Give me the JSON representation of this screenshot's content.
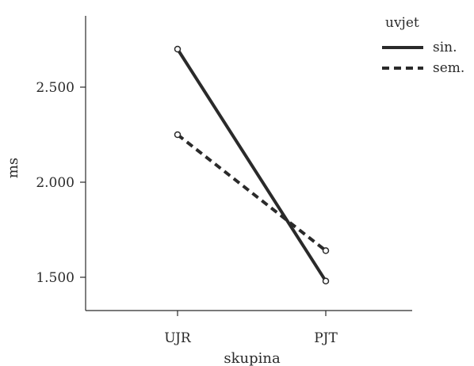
{
  "chart_data": {
    "type": "line",
    "categories": [
      "UJR",
      "PJT"
    ],
    "series": [
      {
        "name": "sin.",
        "values": [
          2700,
          1480
        ],
        "style": "solid",
        "color": "#2a2a2a"
      },
      {
        "name": "sem.",
        "values": [
          2250,
          1640
        ],
        "style": "dashed",
        "color": "#2a2a2a"
      }
    ],
    "xlabel": "skupina",
    "ylabel": "ms",
    "yticks": [
      {
        "value": 1500,
        "label": "1.500"
      },
      {
        "value": 2000,
        "label": "2.000"
      },
      {
        "value": 2500,
        "label": "2.500"
      }
    ],
    "ylim": [
      1330,
      2870
    ],
    "legend": {
      "title": "uvjet",
      "position": "top-right"
    },
    "grid": false
  }
}
